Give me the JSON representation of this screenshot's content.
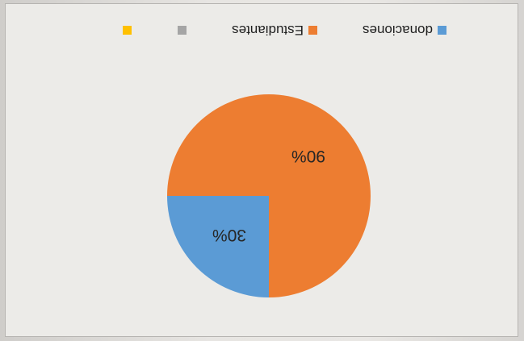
{
  "chart_data": {
    "type": "pie",
    "categories": [
      "donaciones",
      "Estudiantes",
      "",
      ""
    ],
    "values": [
      30,
      90,
      0,
      0
    ],
    "data_labels": [
      "30%",
      "90%",
      "",
      ""
    ],
    "colors": [
      "#5b9bd5",
      "#ed7d31",
      "#a5a5a5",
      "#ffc000"
    ],
    "legend_placement": "bottom",
    "orientation": "rotated 180 degrees",
    "title": "",
    "xlabel": "",
    "ylabel": ""
  }
}
